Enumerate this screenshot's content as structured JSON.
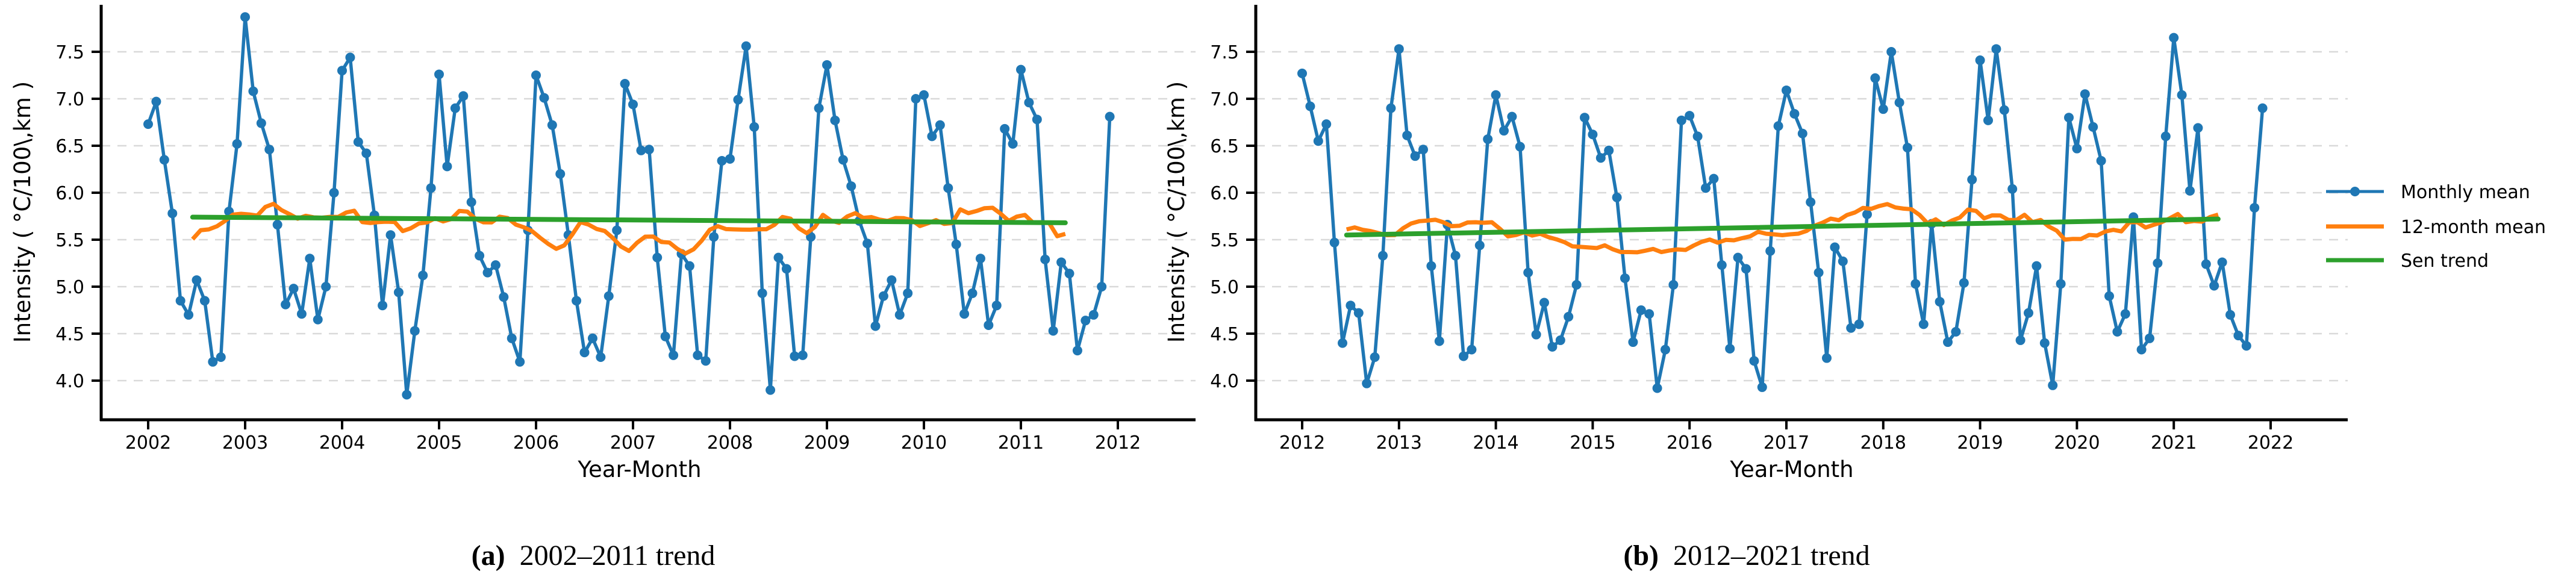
{
  "figure": {
    "background": "#ffffff",
    "colors": {
      "monthly_mean": "#1f77b4",
      "rolling_mean": "#ff7f0e",
      "sen_trend": "#2ca02c",
      "gridline": "#d9d9d9",
      "axis": "#000000"
    },
    "legend": {
      "position": "right-of-figure",
      "items": [
        {
          "label": "Monthly mean",
          "color": "#1f77b4",
          "marker": "line-with-dot"
        },
        {
          "label": "12-month mean",
          "color": "#ff7f0e",
          "marker": "line"
        },
        {
          "label": "Sen trend",
          "color": "#2ca02c",
          "marker": "line"
        }
      ]
    }
  },
  "chart_data": [
    {
      "id": "a",
      "type": "line",
      "caption_tag": "(a)",
      "caption_text": "2002–2011 trend",
      "xlabel": "Year-Month",
      "ylabel": "Intensity ( °C/100\\,km )",
      "x_tick_labels": [
        "2002",
        "2003",
        "2004",
        "2005",
        "2006",
        "2007",
        "2008",
        "2009",
        "2010",
        "2011",
        "2012"
      ],
      "y_tick_labels": [
        "4.0",
        "4.5",
        "5.0",
        "5.5",
        "6.0",
        "6.5",
        "7.0",
        "7.5"
      ],
      "ylim": [
        3.58,
        7.99
      ],
      "grid": "horizontal-dashed",
      "start_year": 2002,
      "series": [
        {
          "name": "Monthly mean",
          "unit": "°C/100 km",
          "cadence": "monthly Jan 2002 – Dec 2011",
          "values": [
            6.73,
            6.97,
            6.35,
            5.78,
            4.85,
            4.7,
            5.07,
            4.85,
            4.2,
            4.25,
            5.8,
            6.52,
            7.87,
            7.08,
            6.74,
            6.46,
            5.66,
            4.81,
            4.98,
            4.71,
            5.3,
            4.65,
            5.0,
            6.0,
            7.3,
            7.44,
            6.54,
            6.42,
            5.76,
            4.8,
            5.55,
            4.94,
            3.85,
            4.53,
            5.12,
            6.05,
            7.26,
            6.28,
            6.9,
            7.03,
            5.9,
            5.33,
            5.15,
            5.23,
            4.89,
            4.45,
            4.2,
            5.6,
            7.25,
            7.01,
            6.72,
            6.2,
            5.55,
            4.85,
            4.3,
            4.45,
            4.25,
            4.9,
            5.6,
            7.16,
            6.94,
            6.45,
            6.46,
            5.31,
            4.47,
            4.27,
            5.35,
            5.22,
            4.27,
            4.21,
            5.53,
            6.34,
            6.36,
            6.99,
            7.56,
            6.7,
            4.93,
            3.9,
            5.31,
            5.19,
            4.26,
            4.27,
            5.53,
            6.9,
            7.36,
            6.77,
            6.35,
            6.07,
            5.7,
            5.46,
            4.58,
            4.9,
            5.07,
            4.7,
            4.93,
            7.0,
            7.04,
            6.6,
            6.72,
            6.05,
            5.45,
            4.71,
            4.93,
            5.3,
            4.59,
            4.8,
            6.68,
            6.52,
            7.31,
            6.96,
            6.78,
            5.29,
            4.53,
            5.26,
            5.14,
            4.32,
            4.64,
            4.7,
            5.0,
            6.81
          ]
        },
        {
          "name": "12-month mean",
          "derivation": "centered 12-month rolling mean of the monthly series"
        },
        {
          "name": "Sen trend",
          "start_value": 5.74,
          "end_value": 5.68
        }
      ]
    },
    {
      "id": "b",
      "type": "line",
      "caption_tag": "(b)",
      "caption_text": "2012–2021 trend",
      "xlabel": "Year-Month",
      "ylabel": "Intensity ( °C/100\\,km )",
      "x_tick_labels": [
        "2012",
        "2013",
        "2014",
        "2015",
        "2016",
        "2017",
        "2018",
        "2019",
        "2020",
        "2021",
        "2022"
      ],
      "y_tick_labels": [
        "4.0",
        "4.5",
        "5.0",
        "5.5",
        "6.0",
        "6.5",
        "7.0",
        "7.5"
      ],
      "ylim": [
        3.58,
        7.99
      ],
      "grid": "horizontal-dashed",
      "start_year": 2012,
      "series": [
        {
          "name": "Monthly mean",
          "unit": "°C/100 km",
          "cadence": "monthly Jan 2012 – Dec 2021",
          "values": [
            7.27,
            6.92,
            6.55,
            6.73,
            5.47,
            4.4,
            4.8,
            4.72,
            3.97,
            4.25,
            5.33,
            6.9,
            7.53,
            6.61,
            6.39,
            6.46,
            5.22,
            4.42,
            5.66,
            5.33,
            4.26,
            4.33,
            5.44,
            6.57,
            7.04,
            6.66,
            6.81,
            6.49,
            5.15,
            4.49,
            4.83,
            4.36,
            4.43,
            4.68,
            5.02,
            6.8,
            6.62,
            6.37,
            6.45,
            5.95,
            5.09,
            4.41,
            4.75,
            4.71,
            3.92,
            4.33,
            5.02,
            6.77,
            6.82,
            6.6,
            6.05,
            6.15,
            5.23,
            4.34,
            5.31,
            5.19,
            4.21,
            3.93,
            5.38,
            6.71,
            7.09,
            6.84,
            6.63,
            5.9,
            5.15,
            4.24,
            5.42,
            5.27,
            4.56,
            4.6,
            5.77,
            7.22,
            6.89,
            7.5,
            6.96,
            6.48,
            5.03,
            4.6,
            5.67,
            4.84,
            4.41,
            4.52,
            5.04,
            6.14,
            7.41,
            6.77,
            7.53,
            6.88,
            6.04,
            4.43,
            4.72,
            5.22,
            4.4,
            3.95,
            5.03,
            6.8,
            6.47,
            7.05,
            6.7,
            6.34,
            4.9,
            4.52,
            4.71,
            5.74,
            4.33,
            4.45,
            5.25,
            6.6,
            7.65,
            7.04,
            6.02,
            6.69,
            5.24,
            5.01,
            5.26,
            4.7,
            4.48,
            4.37,
            5.84,
            6.9
          ]
        },
        {
          "name": "12-month mean",
          "derivation": "centered 12-month rolling mean of the monthly series"
        },
        {
          "name": "Sen trend",
          "start_value": 5.55,
          "end_value": 5.72
        }
      ]
    }
  ]
}
